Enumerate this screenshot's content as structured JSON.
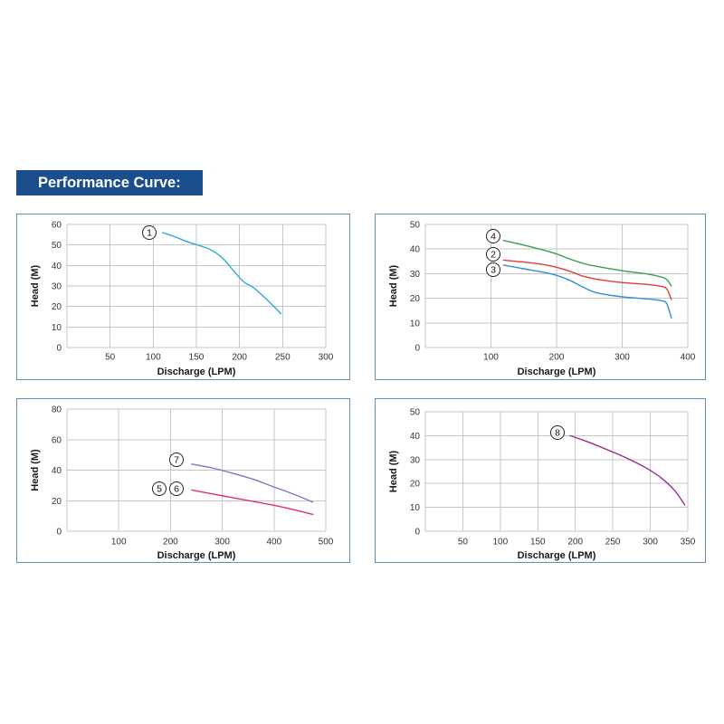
{
  "header": {
    "title": "Performance Curve:"
  },
  "theme": {
    "banner": "#1b4e8c",
    "banner_text": "#ffffff",
    "panel_border": "#5f8fba",
    "grid": "#c6c6c6"
  },
  "chart_data": [
    {
      "type": "line",
      "xlabel": "Discharge (LPM)",
      "ylabel": "Head (M)",
      "xlim": [
        0,
        300
      ],
      "ylim": [
        0,
        60
      ],
      "xticks": [
        50,
        100,
        150,
        200,
        250,
        300
      ],
      "yticks": [
        0,
        10,
        20,
        30,
        40,
        50,
        60
      ],
      "grid": true,
      "series": [
        {
          "labels": [
            "1"
          ],
          "color": "#2ea8df",
          "x": [
            111,
            125,
            140,
            155,
            165,
            175,
            185,
            195,
            205,
            215,
            225,
            235,
            248
          ],
          "y": [
            56,
            54,
            51.5,
            49.5,
            48,
            45.5,
            41.5,
            36.5,
            32,
            29.5,
            26,
            22,
            16.5
          ]
        }
      ]
    },
    {
      "type": "line",
      "xlabel": "Discharge (LPM)",
      "ylabel": "Head (M)",
      "xlim": [
        0,
        400
      ],
      "ylim": [
        0,
        50
      ],
      "xticks": [
        100,
        200,
        300,
        400
      ],
      "yticks": [
        0,
        10,
        20,
        30,
        40,
        50
      ],
      "grid": true,
      "series": [
        {
          "labels": [
            "4"
          ],
          "color": "#3a9e4e",
          "x": [
            119,
            150,
            180,
            200,
            220,
            240,
            260,
            300,
            340,
            360,
            368,
            375
          ],
          "y": [
            43.5,
            41.6,
            39.6,
            38,
            36,
            34.2,
            33,
            31.2,
            29.8,
            28.6,
            27.6,
            25
          ]
        },
        {
          "labels": [
            "2"
          ],
          "color": "#e43a3a",
          "x": [
            119,
            150,
            180,
            200,
            220,
            240,
            260,
            300,
            340,
            360,
            368,
            375
          ],
          "y": [
            35.5,
            34.7,
            33.7,
            32.6,
            31,
            29,
            27.8,
            26.4,
            25.6,
            24.8,
            23.8,
            19.5
          ]
        },
        {
          "labels": [
            "3"
          ],
          "color": "#2f8fd3",
          "x": [
            119,
            150,
            180,
            200,
            220,
            240,
            260,
            300,
            340,
            360,
            368,
            375
          ],
          "y": [
            33.5,
            32,
            30.6,
            29.3,
            27.3,
            24.6,
            22.3,
            20.6,
            19.7,
            19,
            17.8,
            12
          ]
        }
      ]
    },
    {
      "type": "line",
      "xlabel": "Discharge (LPM)",
      "ylabel": "Head (M)",
      "xlim": [
        0,
        500
      ],
      "ylim": [
        0,
        80
      ],
      "xticks": [
        100,
        200,
        300,
        400,
        500
      ],
      "yticks": [
        0,
        20,
        40,
        60,
        80
      ],
      "grid": true,
      "series": [
        {
          "labels": [
            "7"
          ],
          "color": "#7f74c9",
          "x": [
            241,
            280,
            320,
            360,
            400,
            440,
            475
          ],
          "y": [
            44,
            41.5,
            38,
            34,
            29,
            24,
            19
          ]
        },
        {
          "labels": [
            "5",
            "6"
          ],
          "color": "#e4335e",
          "x": [
            241,
            280,
            320,
            360,
            400,
            440,
            475
          ],
          "y": [
            27,
            24.5,
            22,
            19.5,
            17,
            14,
            11
          ]
        }
      ]
    },
    {
      "type": "line",
      "xlabel": "Discharge (LPM)",
      "ylabel": "Head (M)",
      "xlim": [
        0,
        350
      ],
      "ylim": [
        0,
        50
      ],
      "xticks": [
        50,
        100,
        150,
        200,
        250,
        300,
        350
      ],
      "yticks": [
        0,
        10,
        20,
        30,
        40,
        50
      ],
      "grid": true,
      "series": [
        {
          "labels": [
            "8"
          ],
          "color": "#9c2b8f",
          "x": [
            193,
            220,
            245,
            270,
            295,
            315,
            332,
            346
          ],
          "y": [
            40,
            37,
            33.8,
            30.4,
            26.4,
            22.2,
            17.2,
            11
          ]
        }
      ]
    }
  ]
}
